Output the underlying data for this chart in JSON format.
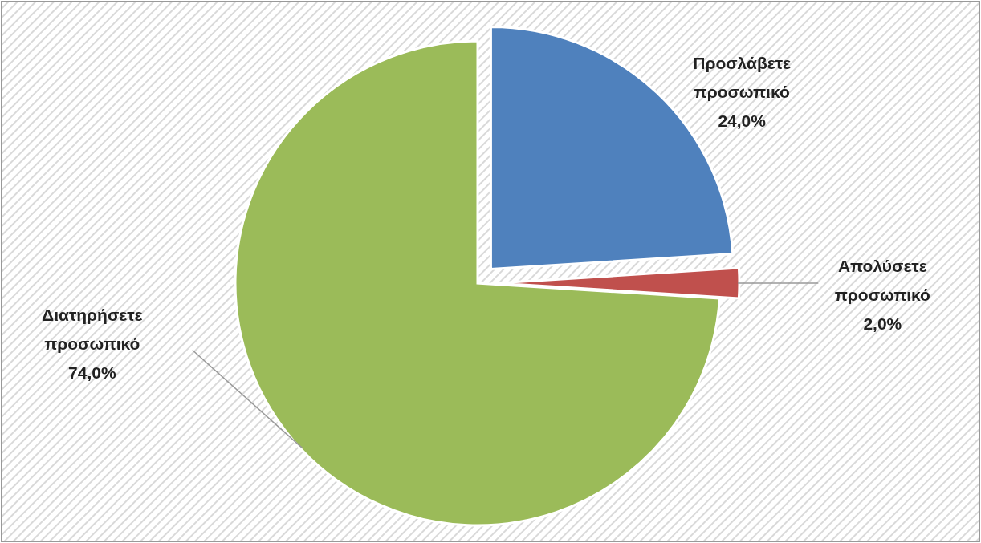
{
  "chart_data": {
    "type": "pie",
    "categories": [
      "Προσλάβετε προσωπικό",
      "Απολύσετε προσωπικό",
      "Διατηρήσετε προσωπικό"
    ],
    "values": [
      24,
      2,
      74
    ],
    "colors": [
      "#4f81bd",
      "#c0504d",
      "#9bbb59"
    ],
    "value_labels": [
      "24,0%",
      "2,0%",
      "74,0%"
    ]
  }
}
